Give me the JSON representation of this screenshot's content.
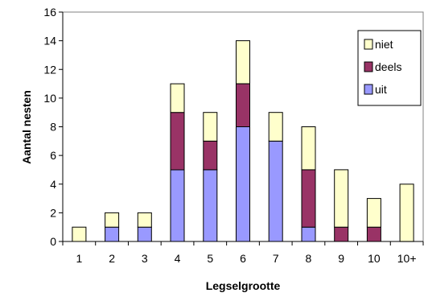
{
  "chart_data": {
    "type": "bar",
    "stacked": true,
    "categories": [
      "1",
      "2",
      "3",
      "4",
      "5",
      "6",
      "7",
      "8",
      "9",
      "10",
      "10+"
    ],
    "series": [
      {
        "name": "uit",
        "values": [
          0,
          1,
          1,
          5,
          5,
          8,
          7,
          1,
          0,
          0,
          0
        ],
        "color": "#9999ff"
      },
      {
        "name": "deels",
        "values": [
          0,
          0,
          0,
          4,
          2,
          3,
          0,
          4,
          1,
          1,
          0
        ],
        "color": "#993366"
      },
      {
        "name": "niet",
        "values": [
          1,
          1,
          1,
          2,
          2,
          3,
          2,
          3,
          4,
          2,
          4
        ],
        "color": "#ffffcc"
      }
    ],
    "legend_order": [
      "niet",
      "deels",
      "uit"
    ],
    "xlabel": "Legselgrootte",
    "ylabel": "Aantal nesten",
    "ylim": [
      0,
      16
    ],
    "yticks": [
      0,
      2,
      4,
      6,
      8,
      10,
      12,
      14,
      16
    ],
    "grid": false,
    "legend_position": "top-right"
  }
}
